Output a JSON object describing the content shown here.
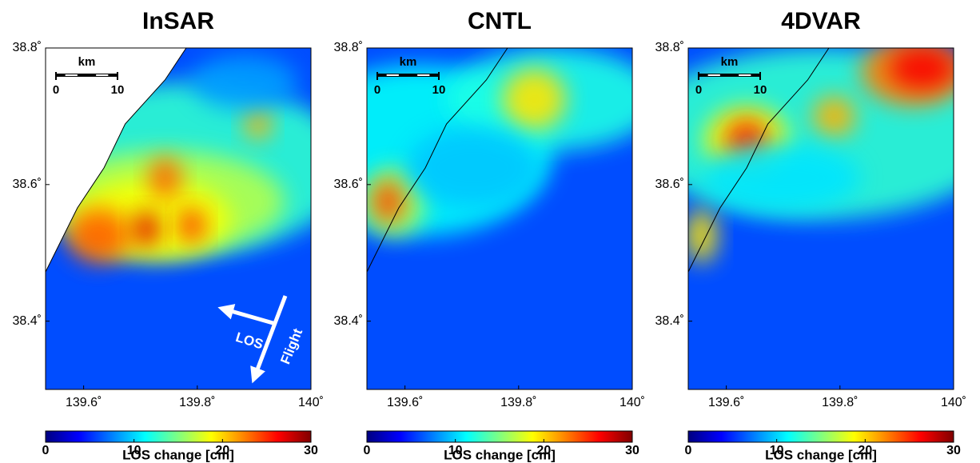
{
  "chart_data": [
    {
      "type": "heatmap",
      "title": "InSAR",
      "colormap": "jet",
      "xlim": [
        139.533,
        140.0
      ],
      "ylim": [
        38.3,
        38.8
      ],
      "xticks": [
        {
          "value": 139.6,
          "label": "139.6˚"
        },
        {
          "value": 139.8,
          "label": "139.8˚"
        },
        {
          "value": 140,
          "label": "140˚"
        }
      ],
      "yticks": [
        {
          "value": 38.4,
          "label": "38.4˚"
        },
        {
          "value": 38.6,
          "label": "38.6˚"
        },
        {
          "value": 38.8,
          "label": "38.8˚"
        }
      ],
      "colorbar": {
        "lim": [
          0,
          30
        ],
        "ticks": [
          0,
          10,
          20,
          30
        ],
        "label": "LOS change [cm]"
      },
      "scalebar": {
        "label": "km",
        "ticks": [
          0,
          10
        ]
      },
      "annotations": [
        "LOS",
        "Flight"
      ]
    },
    {
      "type": "heatmap",
      "title": "CNTL",
      "colormap": "jet",
      "xlim": [
        139.533,
        140.0
      ],
      "ylim": [
        38.3,
        38.8
      ],
      "xticks": [
        {
          "value": 139.6,
          "label": "139.6˚"
        },
        {
          "value": 139.8,
          "label": "139.8˚"
        },
        {
          "value": 140,
          "label": "140˚"
        }
      ],
      "yticks": [
        {
          "value": 38.4,
          "label": "38.4˚"
        },
        {
          "value": 38.6,
          "label": "38.6˚"
        },
        {
          "value": 38.8,
          "label": "38.8˚"
        }
      ],
      "colorbar": {
        "lim": [
          0,
          30
        ],
        "ticks": [
          0,
          10,
          20,
          30
        ],
        "label": "LOS change [cm]"
      },
      "scalebar": {
        "label": "km",
        "ticks": [
          0,
          10
        ]
      }
    },
    {
      "type": "heatmap",
      "title": "4DVAR",
      "colormap": "jet",
      "xlim": [
        139.533,
        140.0
      ],
      "ylim": [
        38.3,
        38.8
      ],
      "xticks": [
        {
          "value": 139.6,
          "label": "139.6˚"
        },
        {
          "value": 139.8,
          "label": "139.8˚"
        },
        {
          "value": 140,
          "label": "140˚"
        }
      ],
      "yticks": [
        {
          "value": 38.4,
          "label": "38.4˚"
        },
        {
          "value": 38.6,
          "label": "38.6˚"
        },
        {
          "value": 38.8,
          "label": "38.8˚"
        }
      ],
      "colorbar": {
        "lim": [
          0,
          30
        ],
        "ticks": [
          0,
          10,
          20,
          30
        ],
        "label": "LOS change [cm]"
      },
      "scalebar": {
        "label": "km",
        "ticks": [
          0,
          10
        ]
      }
    }
  ]
}
